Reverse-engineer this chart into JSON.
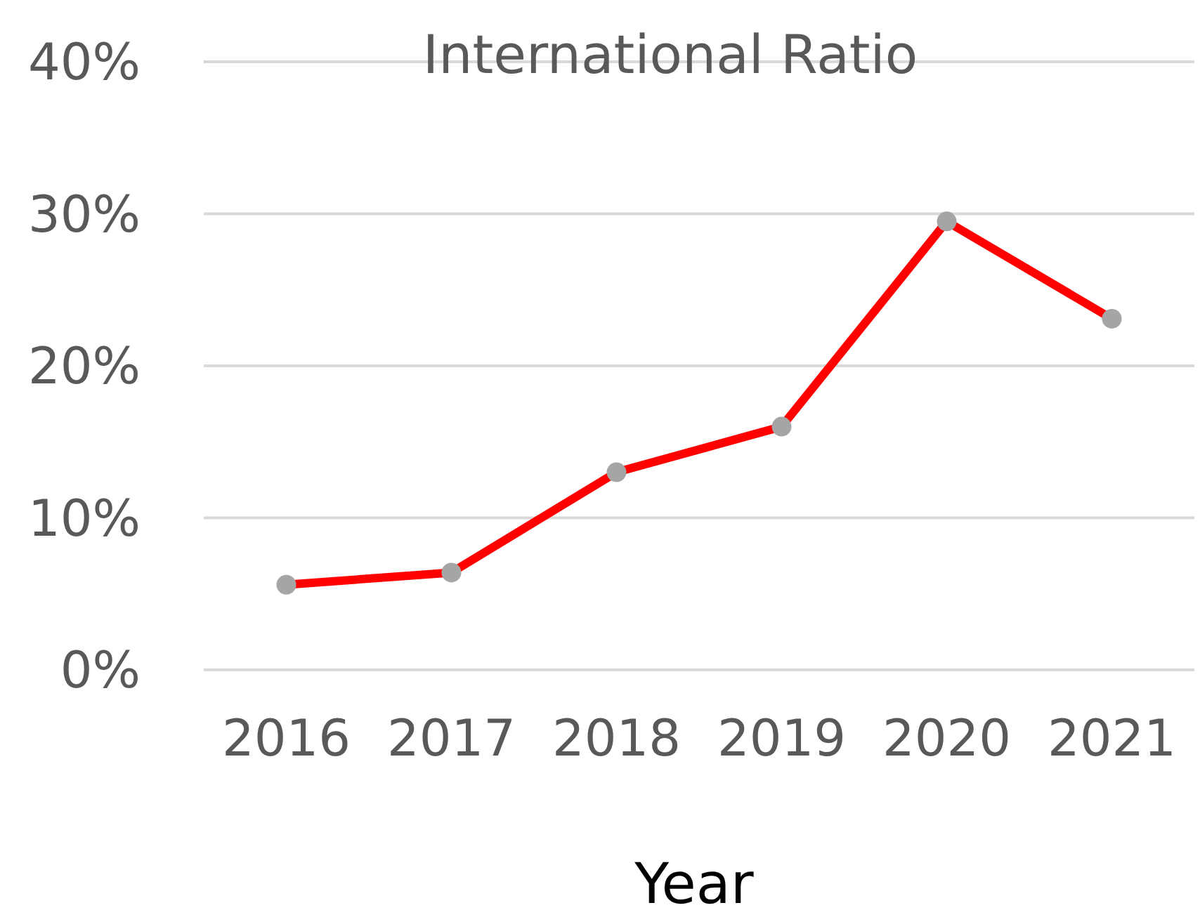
{
  "chart_data": {
    "type": "line",
    "title": "International Ratio",
    "xlabel": "Year",
    "categories": [
      "2016",
      "2017",
      "2018",
      "2019",
      "2020",
      "2021"
    ],
    "series": [
      {
        "color": "#ff0000",
        "values": [
          5.6,
          6.4,
          13.0,
          16.0,
          29.5,
          23.1
        ]
      }
    ],
    "ylim": [
      0,
      40
    ],
    "yticks": [
      {
        "value": 0,
        "label": "0%"
      },
      {
        "value": 10,
        "label": "10%"
      },
      {
        "value": 20,
        "label": "20%"
      },
      {
        "value": 30,
        "label": "30%"
      },
      {
        "value": 40,
        "label": "40%"
      }
    ],
    "grid": "y",
    "marker": "circle",
    "line_style": "solid"
  }
}
